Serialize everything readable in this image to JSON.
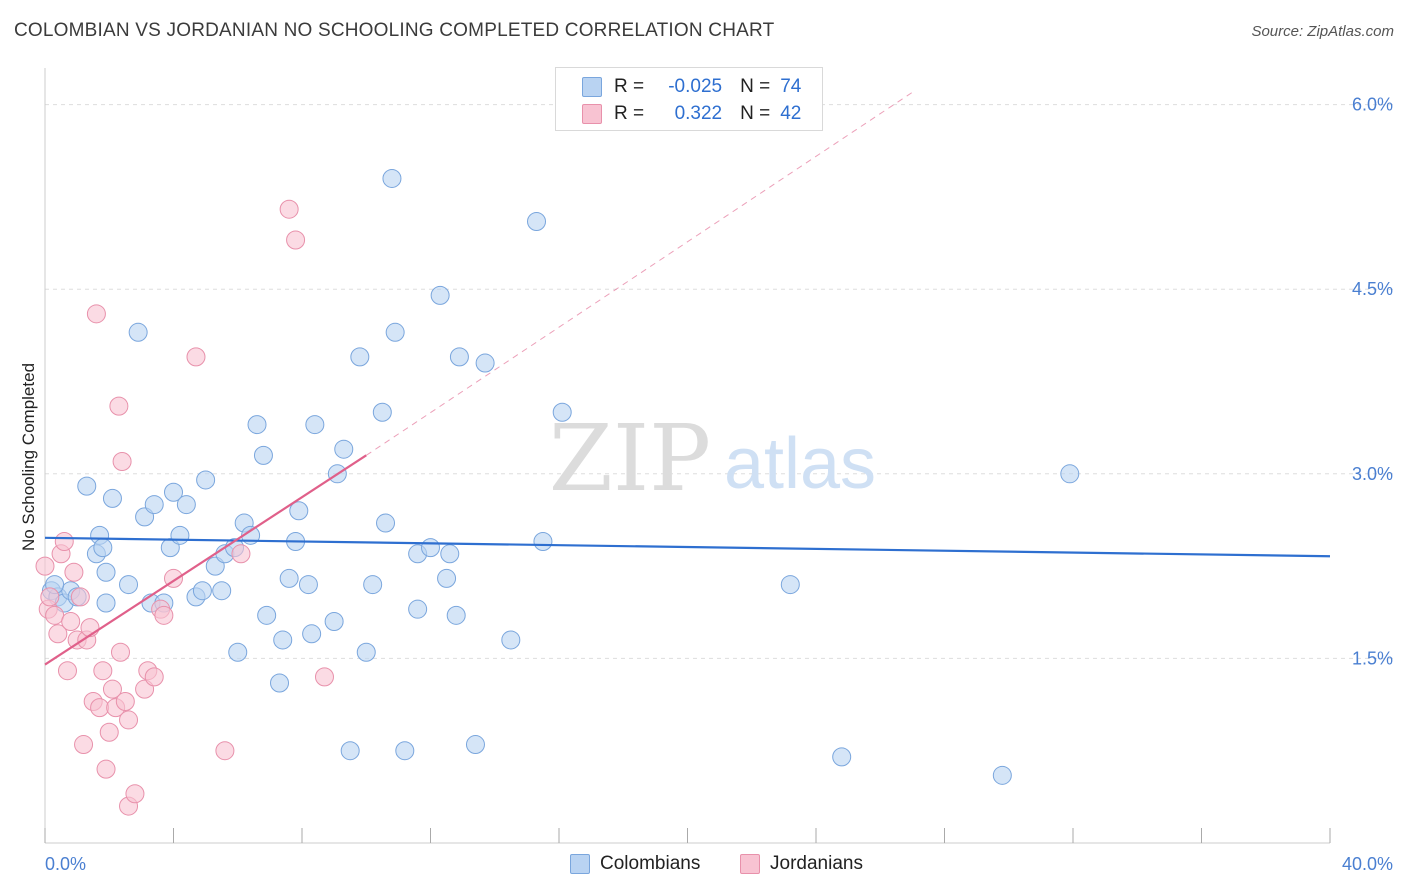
{
  "title": "COLOMBIAN VS JORDANIAN NO SCHOOLING COMPLETED CORRELATION CHART",
  "source": "Source: ZipAtlas.com",
  "watermark": {
    "zip": "ZIP",
    "atlas": "atlas"
  },
  "legend": {
    "r_label": "R =",
    "n_label": "N =",
    "rows": [
      {
        "r": "-0.025",
        "n": "74",
        "swatch_fill": "#b9d3f2",
        "swatch_stroke": "#7aa6dd"
      },
      {
        "r": "0.322",
        "n": "42",
        "swatch_fill": "#f8c3d2",
        "swatch_stroke": "#e891ab"
      }
    ]
  },
  "bottom_legend": [
    "Colombians",
    "Jordanians"
  ],
  "chart_data": {
    "type": "scatter",
    "xlabel": "",
    "ylabel": "No Schooling Completed",
    "xlim": [
      0,
      40
    ],
    "ylim": [
      0,
      6.2
    ],
    "x_tick_labels": [
      "0.0%",
      "40.0%"
    ],
    "y_ticks": [
      1.5,
      3.0,
      4.5,
      6.0
    ],
    "y_tick_labels": [
      "1.5%",
      "3.0%",
      "4.5%",
      "6.0%"
    ],
    "grid": true,
    "series": [
      {
        "name": "Colombians",
        "color": "#7aa6dd",
        "fill": "#b9d3f2",
        "trend": {
          "x": [
            0,
            40
          ],
          "y": [
            2.48,
            2.33
          ],
          "dashed_extension": false,
          "color": "#2e6fd0"
        },
        "points": [
          [
            0.2,
            2.05
          ],
          [
            0.4,
            2.0
          ],
          [
            0.6,
            1.95
          ],
          [
            0.8,
            2.05
          ],
          [
            0.3,
            2.1
          ],
          [
            1.0,
            2.0
          ],
          [
            1.3,
            2.9
          ],
          [
            1.7,
            2.5
          ],
          [
            1.6,
            2.35
          ],
          [
            1.8,
            2.4
          ],
          [
            1.9,
            2.2
          ],
          [
            2.1,
            2.8
          ],
          [
            1.9,
            1.95
          ],
          [
            2.6,
            2.1
          ],
          [
            2.9,
            4.15
          ],
          [
            3.1,
            2.65
          ],
          [
            3.4,
            2.75
          ],
          [
            3.3,
            1.95
          ],
          [
            3.7,
            1.95
          ],
          [
            3.9,
            2.4
          ],
          [
            4.0,
            2.85
          ],
          [
            4.2,
            2.5
          ],
          [
            4.4,
            2.75
          ],
          [
            4.7,
            2.0
          ],
          [
            4.9,
            2.05
          ],
          [
            5.0,
            2.95
          ],
          [
            5.3,
            2.25
          ],
          [
            5.5,
            2.05
          ],
          [
            5.6,
            2.35
          ],
          [
            5.9,
            2.4
          ],
          [
            6.0,
            1.55
          ],
          [
            6.2,
            2.6
          ],
          [
            6.4,
            2.5
          ],
          [
            6.6,
            3.4
          ],
          [
            6.8,
            3.15
          ],
          [
            6.9,
            1.85
          ],
          [
            7.3,
            1.3
          ],
          [
            7.4,
            1.65
          ],
          [
            7.6,
            2.15
          ],
          [
            7.8,
            2.45
          ],
          [
            7.9,
            2.7
          ],
          [
            8.2,
            2.1
          ],
          [
            8.3,
            1.7
          ],
          [
            8.4,
            3.4
          ],
          [
            9.0,
            1.8
          ],
          [
            9.1,
            3.0
          ],
          [
            9.3,
            3.2
          ],
          [
            9.5,
            0.75
          ],
          [
            9.8,
            3.95
          ],
          [
            10.0,
            1.55
          ],
          [
            10.2,
            2.1
          ],
          [
            10.5,
            3.5
          ],
          [
            10.6,
            2.6
          ],
          [
            10.8,
            5.4
          ],
          [
            10.9,
            4.15
          ],
          [
            11.2,
            0.75
          ],
          [
            11.6,
            2.35
          ],
          [
            11.6,
            1.9
          ],
          [
            12.0,
            2.4
          ],
          [
            12.3,
            4.45
          ],
          [
            12.5,
            2.15
          ],
          [
            12.6,
            2.35
          ],
          [
            12.8,
            1.85
          ],
          [
            12.9,
            3.95
          ],
          [
            13.4,
            0.8
          ],
          [
            13.7,
            3.9
          ],
          [
            14.5,
            1.65
          ],
          [
            15.3,
            5.05
          ],
          [
            15.5,
            2.45
          ],
          [
            16.1,
            3.5
          ],
          [
            23.2,
            2.1
          ],
          [
            24.8,
            0.7
          ],
          [
            29.8,
            0.55
          ],
          [
            31.9,
            3.0
          ]
        ]
      },
      {
        "name": "Jordanians",
        "color": "#e891ab",
        "fill": "#f8c3d2",
        "trend": {
          "x": [
            0,
            10
          ],
          "y": [
            1.45,
            3.15
          ],
          "dashed_extension": true,
          "dash_to": [
            27,
            6.1
          ],
          "color": "#e0608a"
        },
        "points": [
          [
            0.0,
            2.25
          ],
          [
            0.1,
            1.9
          ],
          [
            0.3,
            1.85
          ],
          [
            0.4,
            1.7
          ],
          [
            0.5,
            2.35
          ],
          [
            0.6,
            2.45
          ],
          [
            0.7,
            1.4
          ],
          [
            0.8,
            1.8
          ],
          [
            0.9,
            2.2
          ],
          [
            1.0,
            1.65
          ],
          [
            1.1,
            2.0
          ],
          [
            1.2,
            0.8
          ],
          [
            1.3,
            1.65
          ],
          [
            1.4,
            1.75
          ],
          [
            1.5,
            1.15
          ],
          [
            1.6,
            4.3
          ],
          [
            1.7,
            1.1
          ],
          [
            1.8,
            1.4
          ],
          [
            1.9,
            0.6
          ],
          [
            2.0,
            0.9
          ],
          [
            2.1,
            1.25
          ],
          [
            2.2,
            1.1
          ],
          [
            2.3,
            3.55
          ],
          [
            2.35,
            1.55
          ],
          [
            2.4,
            3.1
          ],
          [
            2.5,
            1.15
          ],
          [
            2.6,
            1.0
          ],
          [
            2.6,
            0.3
          ],
          [
            2.8,
            0.4
          ],
          [
            3.1,
            1.25
          ],
          [
            3.2,
            1.4
          ],
          [
            3.4,
            1.35
          ],
          [
            3.6,
            1.9
          ],
          [
            3.7,
            1.85
          ],
          [
            4.0,
            2.15
          ],
          [
            4.7,
            3.95
          ],
          [
            5.6,
            0.75
          ],
          [
            6.1,
            2.35
          ],
          [
            7.6,
            5.15
          ],
          [
            7.8,
            4.9
          ],
          [
            8.7,
            1.35
          ],
          [
            0.15,
            2.0
          ]
        ]
      }
    ]
  }
}
